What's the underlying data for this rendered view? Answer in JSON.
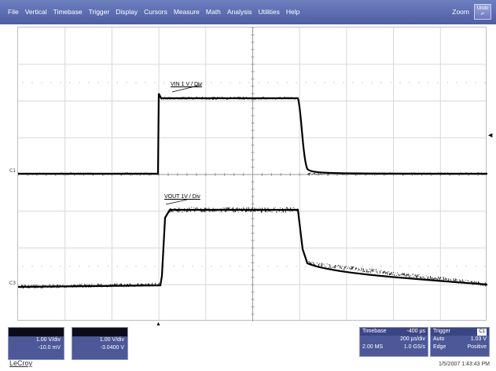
{
  "menu": {
    "items": [
      "File",
      "Vertical",
      "Timebase",
      "Trigger",
      "Display",
      "Cursors",
      "Measure",
      "Math",
      "Analysis",
      "Utilities",
      "Help"
    ],
    "zoom_label": "Zoom",
    "undo_label": "Undo"
  },
  "screen": {
    "c1_marker": "C1",
    "c3_marker": "C3",
    "vin_label": "VIN 1 V / Div",
    "vout_label": "VOUT 1V / Div"
  },
  "channels": [
    {
      "scale": "1.00 V/div",
      "offset": "-10.0 mV"
    },
    {
      "scale": "1.00 V/div",
      "offset": "-3.0400 V"
    }
  ],
  "timebase": {
    "label": "Timebase",
    "delay": "-400 µs",
    "rate": "200 µs/div",
    "samples": "2.00 MS",
    "sample_rate": "1.0 GS/s"
  },
  "trigger": {
    "label": "Trigger",
    "badge": "C1",
    "mode": "Auto",
    "level": "1.03 V",
    "type": "Edge",
    "slope": "Positive"
  },
  "footer": {
    "brand": "LeCroy",
    "datetime": "1/5/2007 1:43:43 PM"
  },
  "colors": {
    "menu": "#5a69ae",
    "panel": "#4c5898",
    "trace": "#000000"
  }
}
